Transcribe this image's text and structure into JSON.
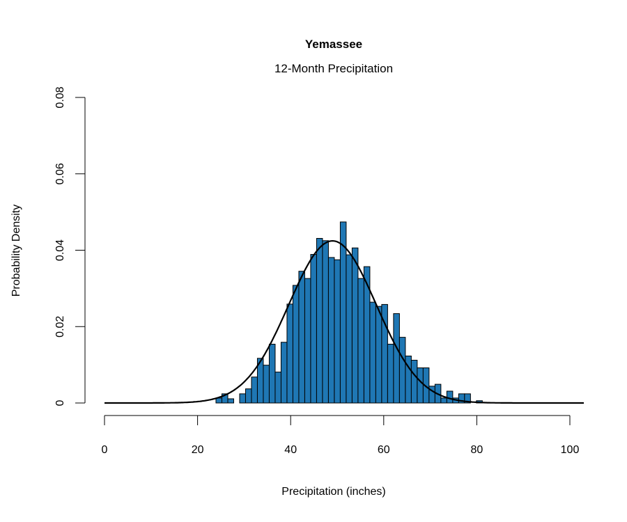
{
  "chart_data": {
    "type": "bar",
    "title": "Yemassee",
    "subtitle": "12-Month Precipitation",
    "xlabel": "Precipitation (inches)",
    "ylabel": "Probability Density",
    "xlim": [
      0,
      100
    ],
    "ylim": [
      0,
      0.08
    ],
    "x_ticks": [
      "0",
      "20",
      "40",
      "60",
      "80",
      "100"
    ],
    "y_ticks": [
      "0",
      "0.02",
      "0.04",
      "0.06",
      "0.08"
    ],
    "grid": false,
    "bar_color": "#1f77b4",
    "bin_start": 23.95,
    "bin_width": 1.272,
    "density": [
      0.0013,
      0.0024,
      0.0011,
      0,
      0.0024,
      0.0037,
      0.0068,
      0.0117,
      0.0099,
      0.0154,
      0.0081,
      0.0159,
      0.0259,
      0.0308,
      0.0345,
      0.0326,
      0.0389,
      0.0431,
      0.0425,
      0.0381,
      0.0375,
      0.0474,
      0.0388,
      0.0406,
      0.0326,
      0.0357,
      0.0264,
      0.0253,
      0.0258,
      0.0154,
      0.0234,
      0.0172,
      0.0123,
      0.0112,
      0.0092,
      0.0092,
      0.0044,
      0.0049,
      0.0013,
      0.0031,
      0.0013,
      0.0024,
      0.0024,
      0,
      0.0006
    ],
    "fit_curve": {
      "type": "normal",
      "mean": 49.0,
      "sd": 9.4,
      "x_range": [
        0,
        103
      ]
    }
  }
}
